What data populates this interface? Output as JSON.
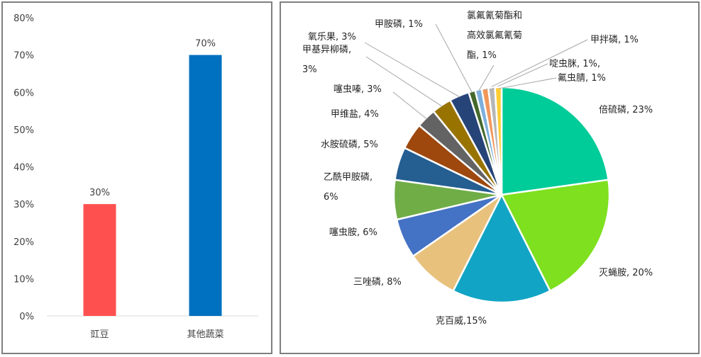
{
  "chart_data": [
    {
      "type": "bar",
      "categories": [
        "豇豆",
        "其他蔬菜"
      ],
      "values": [
        30,
        70
      ],
      "value_labels": [
        "30%",
        "70%"
      ],
      "colors": [
        "#ff5050",
        "#0070c0"
      ],
      "yticks": [
        "0%",
        "10%",
        "20%",
        "30%",
        "40%",
        "50%",
        "60%",
        "70%",
        "80%"
      ],
      "ylim": [
        0,
        80
      ],
      "grid": false,
      "title": "",
      "xlabel": "",
      "ylabel": ""
    },
    {
      "type": "pie",
      "start": "top",
      "direction": "clockwise",
      "slices": [
        {
          "label": [
            "倍硫磷, 23%"
          ],
          "value": 23,
          "color": "#00cc99"
        },
        {
          "label": [
            "灭蝇胺, 20%"
          ],
          "value": 20,
          "color": "#7ee01e"
        },
        {
          "label": [
            "克百威,15%"
          ],
          "value": 15,
          "color": "#12a4c4"
        },
        {
          "label": [
            "三唑磷, 8%"
          ],
          "value": 8,
          "color": "#e8c17d"
        },
        {
          "label": [
            "噻虫胺, 6%"
          ],
          "value": 6,
          "color": "#4472c4"
        },
        {
          "label": [
            "乙酰甲胺磷,",
            "6%"
          ],
          "value": 6,
          "color": "#70ad47"
        },
        {
          "label": [
            "水胺硫磷, 5%"
          ],
          "value": 5,
          "color": "#255e91"
        },
        {
          "label": [
            "甲维盐, 4%"
          ],
          "value": 4,
          "color": "#9e480e"
        },
        {
          "label": [
            "噻虫嗪, 3%"
          ],
          "value": 3,
          "color": "#636363"
        },
        {
          "label": [
            "甲基异柳磷,",
            "3%"
          ],
          "value": 3,
          "color": "#997300"
        },
        {
          "label": [
            "氧乐果, 3%"
          ],
          "value": 3,
          "color": "#264478"
        },
        {
          "label": [
            "甲胺磷, 1%"
          ],
          "value": 1,
          "color": "#43682b"
        },
        {
          "label": [
            "氯氟氰菊酯和",
            "高效氯氟氰菊",
            "酯, 1%"
          ],
          "value": 1,
          "color": "#7cafdd"
        },
        {
          "label": [
            "甲拌磷, 1%"
          ],
          "value": 1,
          "color": "#f1975a"
        },
        {
          "label": [
            "啶虫脒, 1%,"
          ],
          "value": 1,
          "color": "#b7b7b7"
        },
        {
          "label": [
            "氟虫腈, 1%"
          ],
          "value": 1,
          "color": "#ffcd33"
        }
      ]
    }
  ]
}
